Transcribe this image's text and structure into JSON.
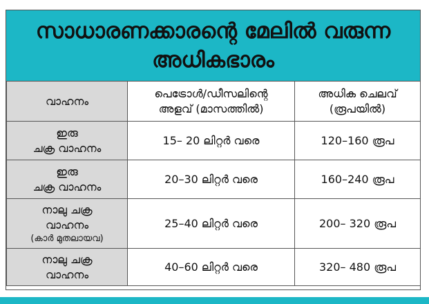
{
  "title": {
    "line1": "സാധാരണക്കാരന്റെ മേലിൽ വരുന്ന",
    "line2": "അധികഭാരം"
  },
  "headers": {
    "vehicle": "വാഹനം",
    "fuel_line1": "പെട്രോൾ/ഡീസലിന്റെ",
    "fuel_line2": "അളവ് (മാസത്തിൽ)",
    "cost_line1": "അധിക ചെലവ്",
    "cost_line2": "(രൂപയിൽ)"
  },
  "rows": [
    {
      "vehicle_line1": "ഇരു",
      "vehicle_line2": "ചക്ര വാഹനം",
      "vehicle_note": "",
      "fuel": "15– 20 ലിറ്റർ വരെ",
      "cost": "120–160 രൂപ"
    },
    {
      "vehicle_line1": "ഇരു",
      "vehicle_line2": "ചക്ര വാഹനം",
      "vehicle_note": "",
      "fuel": "20–30 ലിറ്റർ വരെ",
      "cost": "160–240 രൂപ"
    },
    {
      "vehicle_line1": "നാലു ചക്ര",
      "vehicle_line2": "വാഹനം",
      "vehicle_note": "(കാർ മുതലായവ)",
      "fuel": "25–40 ലിറ്റർ വരെ",
      "cost": "200– 320 രൂപ"
    },
    {
      "vehicle_line1": "നാലു ചക്ര",
      "vehicle_line2": "വാഹനം",
      "vehicle_note": "",
      "fuel": "40–60 ലിറ്റർ വരെ",
      "cost": "320– 480 രൂപ"
    }
  ],
  "colors": {
    "title_band": "#1cb7c6",
    "first_column": "#d9d9d9",
    "border": "#555555"
  }
}
